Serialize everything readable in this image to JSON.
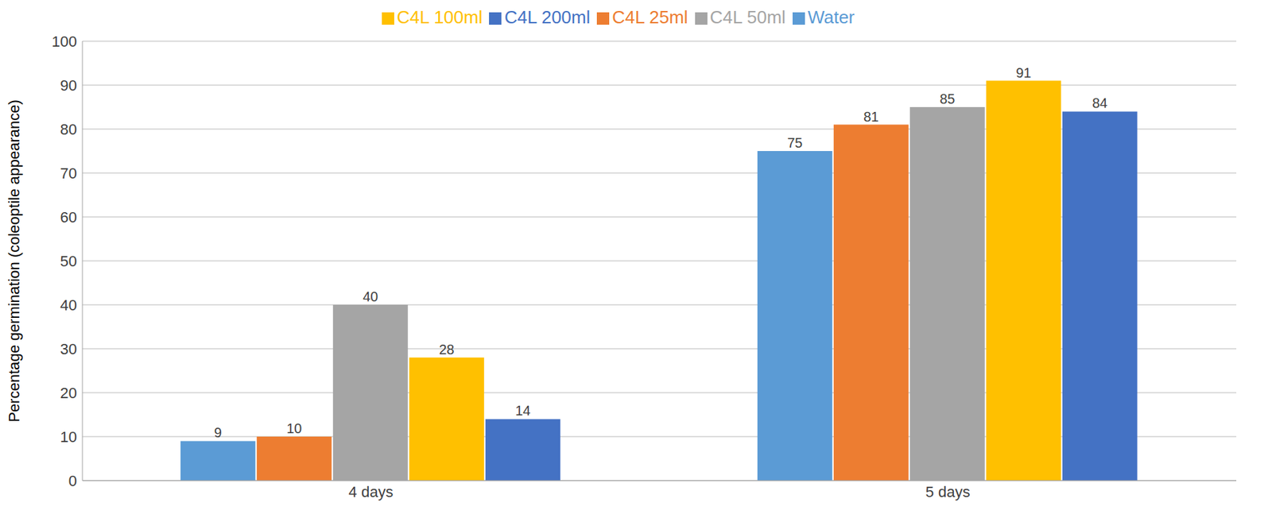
{
  "chart_data": {
    "type": "bar",
    "categories": [
      "4 days",
      "5 days"
    ],
    "series": [
      {
        "name": "Water",
        "color": "#5b9bd5",
        "values": [
          9,
          75
        ]
      },
      {
        "name": "C4L 25ml",
        "color": "#ed7d31",
        "values": [
          10,
          81
        ]
      },
      {
        "name": "C4L 50ml",
        "color": "#a5a5a5",
        "values": [
          40,
          85
        ]
      },
      {
        "name": "C4L 100ml",
        "color": "#ffc000",
        "values": [
          28,
          91
        ]
      },
      {
        "name": "C4L 200ml",
        "color": "#4472c4",
        "values": [
          14,
          84
        ]
      }
    ],
    "y_label": "Percentage germination (coleoptile appearance)",
    "ylim": [
      0,
      100
    ],
    "yticks": [
      0,
      10,
      20,
      30,
      40,
      50,
      60,
      70,
      80,
      90,
      100
    ],
    "grid": true,
    "legend": "top",
    "data_labels": true
  }
}
